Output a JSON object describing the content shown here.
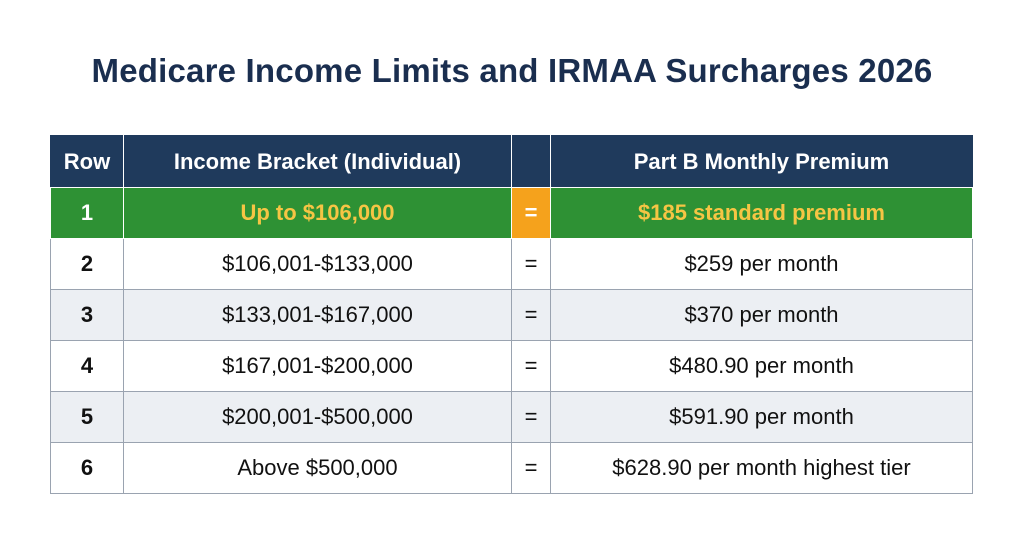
{
  "title": "Medicare Income Limits and IRMAA Surcharges 2026",
  "chart_data": {
    "type": "table",
    "columns": [
      "Row",
      "Income Bracket (Individual)",
      "",
      "Part B Monthly Premium"
    ],
    "rows": [
      {
        "row": "1",
        "income": "Up to $106,000",
        "eq": "=",
        "premium": "$185 standard premium",
        "highlight": true
      },
      {
        "row": "2",
        "income": "$106,001-$133,000",
        "eq": "=",
        "premium": "$259 per month"
      },
      {
        "row": "3",
        "income": "$133,001-$167,000",
        "eq": "=",
        "premium": "$370 per month"
      },
      {
        "row": "4",
        "income": "$167,001-$200,000",
        "eq": "=",
        "premium": "$480.90 per month"
      },
      {
        "row": "5",
        "income": "$200,001-$500,000",
        "eq": "=",
        "premium": "$591.90 per month"
      },
      {
        "row": "6",
        "income": "Above $500,000",
        "eq": "=",
        "premium": "$628.90 per month highest tier"
      }
    ]
  },
  "colors": {
    "title": "#1a2e4f",
    "header_bg": "#1f3a5c",
    "highlight_bg": "#2e9134",
    "highlight_text": "#f6c544",
    "equals_highlight_bg": "#f5a21c",
    "alt_row_bg": "#eceff3"
  }
}
